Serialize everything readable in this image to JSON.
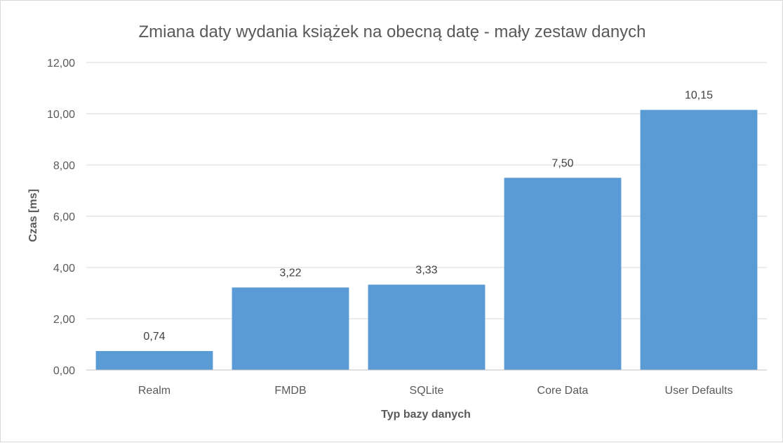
{
  "chart_data": {
    "type": "bar",
    "title": "Zmiana daty wydania książek na obecną datę - mały zestaw danych",
    "xlabel": "Typ bazy danych",
    "ylabel": "Czas [ms]",
    "categories": [
      "Realm",
      "FMDB",
      "SQLite",
      "Core Data",
      "User Defaults"
    ],
    "values": [
      0.74,
      3.22,
      3.33,
      7.5,
      10.15
    ],
    "data_labels": [
      "0,74",
      "3,22",
      "3,33",
      "7,50",
      "10,15"
    ],
    "ylim": [
      0,
      12
    ],
    "yticks": [
      "0,00",
      "2,00",
      "4,00",
      "6,00",
      "8,00",
      "10,00",
      "12,00"
    ],
    "grid": true,
    "legend": "none",
    "bar_color": "#5B9BD5"
  }
}
